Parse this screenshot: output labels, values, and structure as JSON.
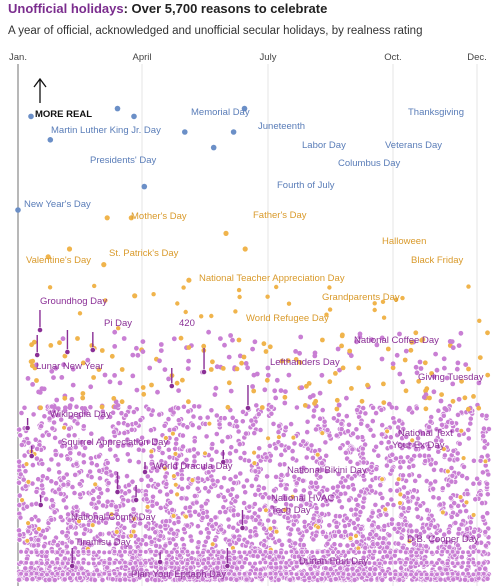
{
  "header": {
    "title_accent": "Unofficial holidays",
    "title_main": ": Over 5,700 reasons to celebrate",
    "subtitle": "A year of official, acknowledged and unofficial secular holidays, by realness rating"
  },
  "chart_data": {
    "type": "scatter",
    "x_ticks": [
      "Jan.",
      "April",
      "July",
      "Oct.",
      "Dec."
    ],
    "y_axis_label": "MORE REAL",
    "grid": "vertical",
    "colors": {
      "official": "#6b8fc7",
      "acknowledged": "#f0b44c",
      "unofficial": "#c97fd4",
      "unofficial_dark": "#8a2f96"
    },
    "official": [
      {
        "name": "New Year's Day",
        "month": "Jan.",
        "day": 1,
        "rank": 10
      },
      {
        "name": "Martin Luther King Jr. Day",
        "month": "Jan.",
        "day": 20,
        "rank": 22
      },
      {
        "name": "Presidents' Day",
        "month": "Feb.",
        "day": 17,
        "rank": 19
      },
      {
        "name": "Memorial Day",
        "month": "May",
        "day": 26,
        "rank": 23
      },
      {
        "name": "Juneteenth",
        "month": "June",
        "day": 19,
        "rank": 22
      },
      {
        "name": "Fourth of July",
        "month": "July",
        "day": 4,
        "rank": 13
      },
      {
        "name": "Labor Day",
        "month": "Sept.",
        "day": 1,
        "rank": 20
      },
      {
        "name": "Columbus Day",
        "month": "Oct.",
        "day": 13,
        "rank": 18
      },
      {
        "name": "Veterans Day",
        "month": "Nov.",
        "day": 11,
        "rank": 20
      },
      {
        "name": "Thanksgiving",
        "month": "Nov.",
        "day": 27,
        "rank": 23
      }
    ],
    "acknowledged": [
      {
        "name": "Mother's Day",
        "month": "May",
        "day": 11,
        "rank": 9
      },
      {
        "name": "Father's Day",
        "month": "June",
        "day": 15,
        "rank": 9
      },
      {
        "name": "Valentine's Day",
        "month": "Feb.",
        "day": 14,
        "rank": 4
      },
      {
        "name": "St. Patrick's Day",
        "month": "March",
        "day": 17,
        "rank": 5
      },
      {
        "name": "National Teacher Appreciation Day",
        "month": "May",
        "day": 6,
        "rank": 3
      },
      {
        "name": "Grandparents Day",
        "month": "Sept.",
        "day": 7,
        "rank": 1
      },
      {
        "name": "Halloween",
        "month": "Oct.",
        "day": 31,
        "rank": 7
      },
      {
        "name": "Black Friday",
        "month": "Nov.",
        "day": 28,
        "rank": 5
      },
      {
        "name": "World Refugee Day",
        "month": "June",
        "day": 20,
        "rank": -1
      }
    ],
    "unofficial_highlighted": [
      {
        "name": "Groundhog Day",
        "month": "Feb.",
        "day": 2
      },
      {
        "name": "Lunar New Year",
        "month": "Jan.",
        "day": 29
      },
      {
        "name": "Pi Day",
        "month": "March",
        "day": 14
      },
      {
        "name": "420",
        "month": "April",
        "day": 20
      },
      {
        "name": "National Coffee Day",
        "month": "Sept.",
        "day": 29
      },
      {
        "name": "Lefthanders Day",
        "month": "Aug.",
        "day": 13
      },
      {
        "name": "Giving Tuesday",
        "month": "Dec.",
        "day": 2
      },
      {
        "name": "Wikipedia Day",
        "month": "Jan.",
        "day": 15
      },
      {
        "name": "Squirrel Appreciation Day",
        "month": "Jan.",
        "day": 21
      },
      {
        "name": "World Dracula Day",
        "month": "May",
        "day": 26
      },
      {
        "name": "National Bikini Day",
        "month": "July",
        "day": 5
      },
      {
        "name": "National Text Your Ex Day",
        "month": "Oct.",
        "day": 27
      },
      {
        "name": "National HVAC Tech Day",
        "month": "June",
        "day": 22
      },
      {
        "name": "National Comfy Day",
        "month": "Feb.",
        "day": 3
      },
      {
        "name": "Tiramisu Day",
        "month": "March",
        "day": 21
      },
      {
        "name": "Durian Fruit Day",
        "month": "July",
        "day": 27
      },
      {
        "name": "D.B. Cooper Day",
        "month": "Nov.",
        "day": 24
      },
      {
        "name": "Plan Your Epitaph Day",
        "month": "Nov.",
        "day": 2
      }
    ]
  },
  "labels": {
    "new_years": "New Year's Day",
    "mlk": "Martin Luther King Jr. Day",
    "presidents": "Presidents' Day",
    "memorial": "Memorial Day",
    "juneteenth": "Juneteenth",
    "fourth": "Fourth of July",
    "labor": "Labor Day",
    "columbus": "Columbus Day",
    "veterans": "Veterans Day",
    "thanksgiving": "Thanksgiving",
    "mothers": "Mother's Day",
    "fathers": "Father's Day",
    "valentines": "Valentine's Day",
    "stpatricks": "St. Patrick's Day",
    "teacher": "National Teacher Appreciation Day",
    "grandparents": "Grandparents Day",
    "halloween": "Halloween",
    "blackfriday": "Black Friday",
    "refugee": "World Refugee Day",
    "groundhog": "Groundhog Day",
    "lunar": "Lunar New Year",
    "pi": "Pi Day",
    "fourtwenty": "420",
    "coffee": "National Coffee Day",
    "lefthanders": "Lefthanders Day",
    "giving": "Giving Tuesday",
    "wikipedia": "Wikipedia Day",
    "squirrel": "Squirrel Appreciation Day",
    "dracula": "World Dracula Day",
    "bikini": "National Bikini Day",
    "textex_1": "National Text",
    "textex_2": "Your Ex Day",
    "hvac_1": "National HVAC",
    "hvac_2": "Tech Day",
    "comfy": "National Comfy Day",
    "tiramisu": "Tiramisu Day",
    "durian": "Durian Fruit Day",
    "dbcooper": "D.B. Cooper Day",
    "epitaph": "Plan Your Epitaph Day"
  }
}
